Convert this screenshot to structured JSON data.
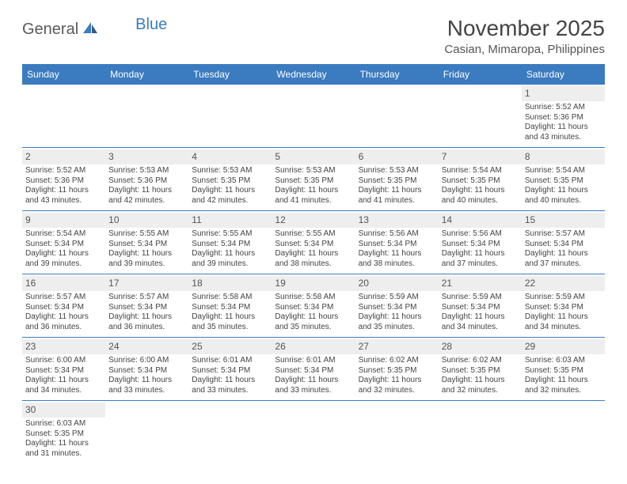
{
  "logo": {
    "text1": "General",
    "text2": "Blue"
  },
  "title": "November 2025",
  "location": "Casian, Mimaropa, Philippines",
  "colors": {
    "header_bg": "#3b7bbf",
    "border": "#3b7bbf",
    "daynum_bg": "#eeeeee"
  },
  "weekdays": [
    "Sunday",
    "Monday",
    "Tuesday",
    "Wednesday",
    "Thursday",
    "Friday",
    "Saturday"
  ],
  "weeks": [
    [
      null,
      null,
      null,
      null,
      null,
      null,
      {
        "n": "1",
        "sr": "Sunrise: 5:52 AM",
        "ss": "Sunset: 5:36 PM",
        "dl": "Daylight: 11 hours and 43 minutes."
      }
    ],
    [
      {
        "n": "2",
        "sr": "Sunrise: 5:52 AM",
        "ss": "Sunset: 5:36 PM",
        "dl": "Daylight: 11 hours and 43 minutes."
      },
      {
        "n": "3",
        "sr": "Sunrise: 5:53 AM",
        "ss": "Sunset: 5:36 PM",
        "dl": "Daylight: 11 hours and 42 minutes."
      },
      {
        "n": "4",
        "sr": "Sunrise: 5:53 AM",
        "ss": "Sunset: 5:35 PM",
        "dl": "Daylight: 11 hours and 42 minutes."
      },
      {
        "n": "5",
        "sr": "Sunrise: 5:53 AM",
        "ss": "Sunset: 5:35 PM",
        "dl": "Daylight: 11 hours and 41 minutes."
      },
      {
        "n": "6",
        "sr": "Sunrise: 5:53 AM",
        "ss": "Sunset: 5:35 PM",
        "dl": "Daylight: 11 hours and 41 minutes."
      },
      {
        "n": "7",
        "sr": "Sunrise: 5:54 AM",
        "ss": "Sunset: 5:35 PM",
        "dl": "Daylight: 11 hours and 40 minutes."
      },
      {
        "n": "8",
        "sr": "Sunrise: 5:54 AM",
        "ss": "Sunset: 5:35 PM",
        "dl": "Daylight: 11 hours and 40 minutes."
      }
    ],
    [
      {
        "n": "9",
        "sr": "Sunrise: 5:54 AM",
        "ss": "Sunset: 5:34 PM",
        "dl": "Daylight: 11 hours and 39 minutes."
      },
      {
        "n": "10",
        "sr": "Sunrise: 5:55 AM",
        "ss": "Sunset: 5:34 PM",
        "dl": "Daylight: 11 hours and 39 minutes."
      },
      {
        "n": "11",
        "sr": "Sunrise: 5:55 AM",
        "ss": "Sunset: 5:34 PM",
        "dl": "Daylight: 11 hours and 39 minutes."
      },
      {
        "n": "12",
        "sr": "Sunrise: 5:55 AM",
        "ss": "Sunset: 5:34 PM",
        "dl": "Daylight: 11 hours and 38 minutes."
      },
      {
        "n": "13",
        "sr": "Sunrise: 5:56 AM",
        "ss": "Sunset: 5:34 PM",
        "dl": "Daylight: 11 hours and 38 minutes."
      },
      {
        "n": "14",
        "sr": "Sunrise: 5:56 AM",
        "ss": "Sunset: 5:34 PM",
        "dl": "Daylight: 11 hours and 37 minutes."
      },
      {
        "n": "15",
        "sr": "Sunrise: 5:57 AM",
        "ss": "Sunset: 5:34 PM",
        "dl": "Daylight: 11 hours and 37 minutes."
      }
    ],
    [
      {
        "n": "16",
        "sr": "Sunrise: 5:57 AM",
        "ss": "Sunset: 5:34 PM",
        "dl": "Daylight: 11 hours and 36 minutes."
      },
      {
        "n": "17",
        "sr": "Sunrise: 5:57 AM",
        "ss": "Sunset: 5:34 PM",
        "dl": "Daylight: 11 hours and 36 minutes."
      },
      {
        "n": "18",
        "sr": "Sunrise: 5:58 AM",
        "ss": "Sunset: 5:34 PM",
        "dl": "Daylight: 11 hours and 35 minutes."
      },
      {
        "n": "19",
        "sr": "Sunrise: 5:58 AM",
        "ss": "Sunset: 5:34 PM",
        "dl": "Daylight: 11 hours and 35 minutes."
      },
      {
        "n": "20",
        "sr": "Sunrise: 5:59 AM",
        "ss": "Sunset: 5:34 PM",
        "dl": "Daylight: 11 hours and 35 minutes."
      },
      {
        "n": "21",
        "sr": "Sunrise: 5:59 AM",
        "ss": "Sunset: 5:34 PM",
        "dl": "Daylight: 11 hours and 34 minutes."
      },
      {
        "n": "22",
        "sr": "Sunrise: 5:59 AM",
        "ss": "Sunset: 5:34 PM",
        "dl": "Daylight: 11 hours and 34 minutes."
      }
    ],
    [
      {
        "n": "23",
        "sr": "Sunrise: 6:00 AM",
        "ss": "Sunset: 5:34 PM",
        "dl": "Daylight: 11 hours and 34 minutes."
      },
      {
        "n": "24",
        "sr": "Sunrise: 6:00 AM",
        "ss": "Sunset: 5:34 PM",
        "dl": "Daylight: 11 hours and 33 minutes."
      },
      {
        "n": "25",
        "sr": "Sunrise: 6:01 AM",
        "ss": "Sunset: 5:34 PM",
        "dl": "Daylight: 11 hours and 33 minutes."
      },
      {
        "n": "26",
        "sr": "Sunrise: 6:01 AM",
        "ss": "Sunset: 5:34 PM",
        "dl": "Daylight: 11 hours and 33 minutes."
      },
      {
        "n": "27",
        "sr": "Sunrise: 6:02 AM",
        "ss": "Sunset: 5:35 PM",
        "dl": "Daylight: 11 hours and 32 minutes."
      },
      {
        "n": "28",
        "sr": "Sunrise: 6:02 AM",
        "ss": "Sunset: 5:35 PM",
        "dl": "Daylight: 11 hours and 32 minutes."
      },
      {
        "n": "29",
        "sr": "Sunrise: 6:03 AM",
        "ss": "Sunset: 5:35 PM",
        "dl": "Daylight: 11 hours and 32 minutes."
      }
    ],
    [
      {
        "n": "30",
        "sr": "Sunrise: 6:03 AM",
        "ss": "Sunset: 5:35 PM",
        "dl": "Daylight: 11 hours and 31 minutes."
      },
      null,
      null,
      null,
      null,
      null,
      null
    ]
  ]
}
